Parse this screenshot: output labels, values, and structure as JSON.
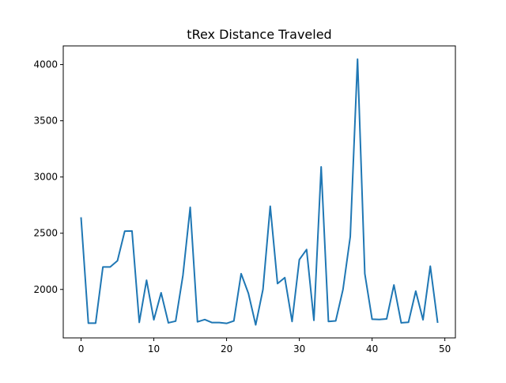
{
  "chart_data": {
    "type": "line",
    "title": "tRex Distance Traveled",
    "xlabel": "",
    "ylabel": "",
    "xlim": [
      -2.45,
      51.45
    ],
    "ylim": [
      1569,
      4166
    ],
    "xticks": [
      0,
      10,
      20,
      30,
      40,
      50
    ],
    "yticks": [
      2000,
      2500,
      3000,
      3500,
      4000
    ],
    "grid": false,
    "series_color": "#1f77b4",
    "x": [
      0,
      1,
      2,
      3,
      4,
      5,
      6,
      7,
      8,
      9,
      10,
      11,
      12,
      13,
      14,
      15,
      16,
      17,
      18,
      19,
      20,
      21,
      22,
      23,
      24,
      25,
      26,
      27,
      28,
      29,
      30,
      31,
      32,
      33,
      34,
      35,
      36,
      37,
      38,
      39,
      40,
      41,
      42,
      43,
      44,
      45,
      46,
      47,
      48,
      49
    ],
    "series": [
      {
        "values": [
          2635,
          1700,
          1700,
          2200,
          2200,
          2255,
          2518,
          2520,
          1707,
          2082,
          1730,
          1970,
          1703,
          1718,
          2125,
          2730,
          1712,
          1732,
          1705,
          1705,
          1698,
          1720,
          2140,
          1965,
          1685,
          2000,
          2740,
          2052,
          2105,
          1715,
          2265,
          2355,
          1725,
          3090,
          1715,
          1720,
          2000,
          2470,
          4048,
          2140,
          1735,
          1733,
          1738,
          2040,
          1703,
          1708,
          1985,
          1730,
          2207,
          1710
        ]
      }
    ]
  }
}
